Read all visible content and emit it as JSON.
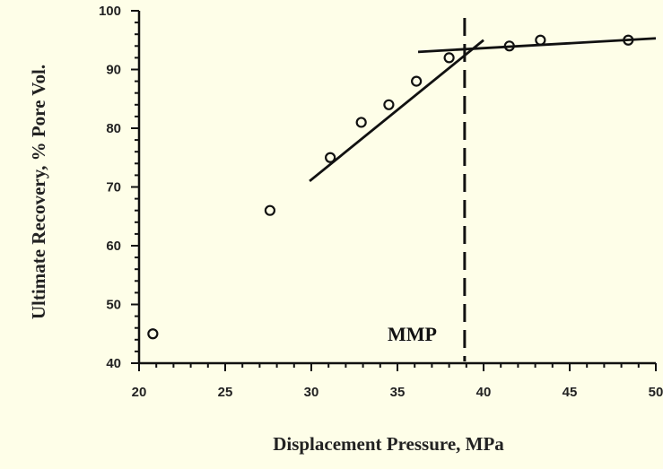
{
  "chart_data": {
    "type": "scatter",
    "title": "",
    "xlabel": "Displacement Pressure,  MPa",
    "ylabel": "Ultimate Recovery, % Pore Vol.",
    "xlim": [
      20,
      50
    ],
    "ylim": [
      40,
      100
    ],
    "xticks": [
      "20",
      "25",
      "30",
      "35",
      "40",
      "45",
      "50"
    ],
    "yticks": [
      "40",
      "50",
      "60",
      "70",
      "80",
      "90",
      "100"
    ],
    "grid": false,
    "points": {
      "x": [
        20.8,
        27.6,
        31.1,
        32.9,
        34.5,
        36.1,
        38.0,
        41.5,
        43.3,
        48.4
      ],
      "y": [
        45,
        66,
        75,
        81,
        84,
        88,
        92,
        94,
        95,
        95
      ]
    },
    "trend_lines": [
      {
        "x": [
          29.9,
          40.0
        ],
        "y": [
          71,
          95
        ]
      },
      {
        "x": [
          36.2,
          50.0
        ],
        "y": [
          93,
          95.3
        ]
      }
    ],
    "mmp_line": {
      "x": 38.9,
      "label": "MMP"
    },
    "colors": {
      "background": "#fefee8",
      "ink": "#111111"
    }
  }
}
